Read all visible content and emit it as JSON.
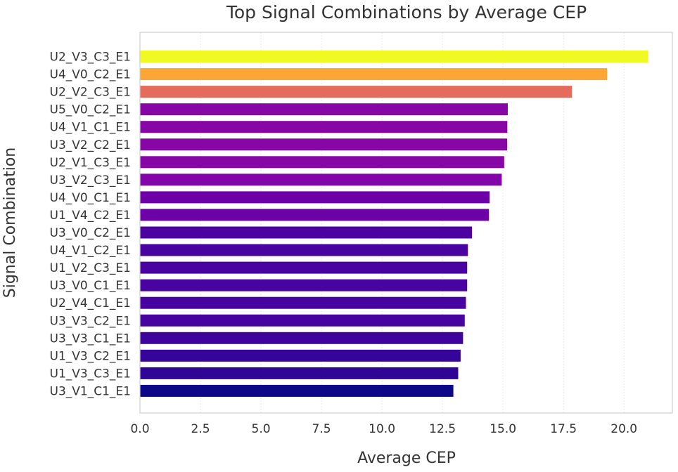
{
  "chart_data": {
    "type": "bar",
    "orientation": "horizontal",
    "title": "Top Signal Combinations by Average CEP",
    "xlabel": "Average CEP",
    "ylabel": "Signal Combination",
    "xlim": [
      0,
      22.0
    ],
    "xticks": [
      "0.0",
      "2.5",
      "5.0",
      "7.5",
      "10.0",
      "12.5",
      "15.0",
      "17.5",
      "20.0"
    ],
    "xtick_values": [
      0,
      2.5,
      5,
      7.5,
      10,
      12.5,
      15,
      17.5,
      20
    ],
    "grid": true,
    "colormap": "plasma",
    "categories": [
      "U2_V3_C3_E1",
      "U4_V0_C2_E1",
      "U2_V2_C3_E1",
      "U5_V0_C2_E1",
      "U4_V1_C1_E1",
      "U3_V2_C2_E1",
      "U2_V1_C3_E1",
      "U3_V2_C3_E1",
      "U4_V0_C1_E1",
      "U1_V4_C2_E1",
      "U3_V0_C2_E1",
      "U4_V1_C2_E1",
      "U1_V2_C3_E1",
      "U3_V0_C1_E1",
      "U2_V4_C1_E1",
      "U3_V3_C2_E1",
      "U3_V3_C1_E1",
      "U1_V3_C2_E1",
      "U1_V3_C3_E1",
      "U3_V1_C1_E1"
    ],
    "values": [
      21.0,
      19.3,
      17.85,
      15.2,
      15.18,
      15.17,
      15.05,
      14.95,
      14.45,
      14.42,
      13.72,
      13.55,
      13.52,
      13.52,
      13.47,
      13.42,
      13.35,
      13.25,
      13.15,
      12.95
    ],
    "colors": [
      "#f0f921",
      "#fca636",
      "#e56b5d",
      "#8606a6",
      "#8606a6",
      "#8606a6",
      "#8606a6",
      "#8405a7",
      "#6e00a8",
      "#6e00a8",
      "#4c02a1",
      "#4903a0",
      "#4903a0",
      "#4903a0",
      "#46039f",
      "#46039f",
      "#3e049c",
      "#35049b",
      "#2f0596",
      "#0d0887"
    ]
  }
}
